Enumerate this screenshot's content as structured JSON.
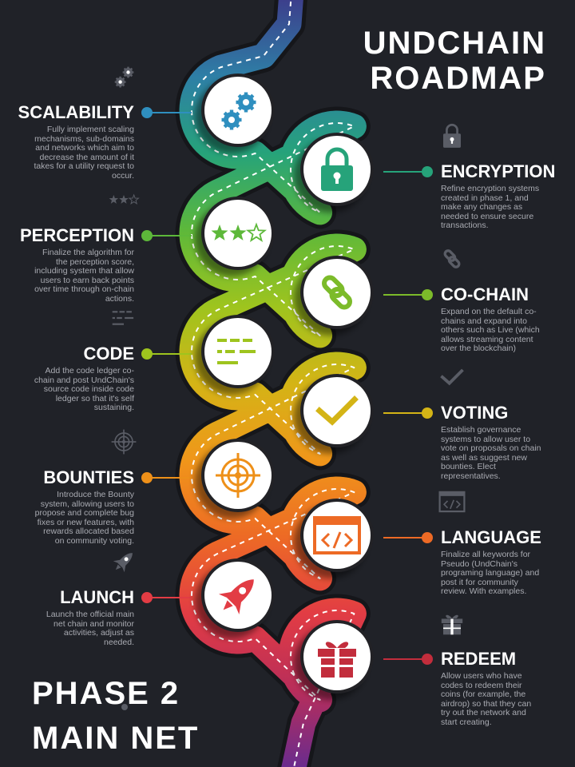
{
  "title": {
    "line1": "UNDCHAIN",
    "line2": "ROADMAP"
  },
  "phase": {
    "line1": "PHASE 2",
    "line2": "MAIN NET"
  },
  "colors": {
    "background": "#202228",
    "road_gradient": [
      "#3c3f8c",
      "#2e7fa6",
      "#26a37a",
      "#5db83a",
      "#9ec41e",
      "#d4b416",
      "#f0961a",
      "#ed6a25",
      "#e23c44",
      "#b82d5a",
      "#6a2c8e"
    ],
    "ghost_icon": "#5a5d66"
  },
  "milestones": [
    {
      "id": "scalability",
      "side": "left",
      "heading": "SCALABILITY",
      "color": "#2f8fbf",
      "icon": "gears-icon",
      "lines": [
        "Fully implement scaling",
        "mechanisms, sub-domains",
        "and networks which aim to",
        "decrease the amount of it",
        "takes for a utility request to",
        "occur."
      ]
    },
    {
      "id": "encryption",
      "side": "right",
      "heading": "ENCRYPTION",
      "color": "#26a37a",
      "icon": "padlock-icon",
      "lines": [
        "Refine encryption systems",
        "created in phase 1, and",
        "make any changes as",
        "needed to ensure secure",
        "transactions."
      ]
    },
    {
      "id": "perception",
      "side": "left",
      "heading": "PERCEPTION",
      "color": "#5db83a",
      "icon": "stars-icon",
      "lines": [
        "Finalize the algorithm for",
        "the perception score,",
        "including system that allow",
        "users to earn back points",
        "over time through on-chain",
        "actions."
      ]
    },
    {
      "id": "co-chain",
      "side": "right",
      "heading": "CO-CHAIN",
      "color": "#7cbb2a",
      "icon": "chain-link-icon",
      "lines": [
        "Expand on the default co-",
        "chains and expand into",
        "others such as Live (which",
        "allows streaming content",
        "over the blockchain)"
      ]
    },
    {
      "id": "code",
      "side": "left",
      "heading": "CODE",
      "color": "#9ec41e",
      "icon": "code-lines-icon",
      "lines": [
        "Add the code ledger co-",
        "chain and post UndChain's",
        "source code inside code",
        "ledger so that it's self",
        "sustaining."
      ]
    },
    {
      "id": "voting",
      "side": "right",
      "heading": "VOTING",
      "color": "#d4b416",
      "icon": "checkmark-icon",
      "lines": [
        "Establish governance",
        "systems to allow user to",
        "vote on proposals on chain",
        "as well as suggest new",
        "bounties. Elect",
        "representatives."
      ]
    },
    {
      "id": "bounties",
      "side": "left",
      "heading": "BOUNTIES",
      "color": "#ee9019",
      "icon": "target-icon",
      "lines": [
        "Introduce the Bounty",
        "system, allowing users to",
        "propose and complete bug",
        "fixes or new features, with",
        "rewards allocated based",
        "on community voting."
      ]
    },
    {
      "id": "language",
      "side": "right",
      "heading": "LANGUAGE",
      "color": "#ed6a25",
      "icon": "code-window-icon",
      "lines": [
        "Finalize all keywords for",
        "Pseudo (UndChain's",
        "programing language) and",
        "post it for community",
        "review. With examples."
      ]
    },
    {
      "id": "launch",
      "side": "left",
      "heading": "LAUNCH",
      "color": "#e23c44",
      "icon": "rocket-icon",
      "lines": [
        "Launch the official main",
        "net  chain and monitor",
        "activities, adjust as",
        "needed."
      ]
    },
    {
      "id": "redeem",
      "side": "right",
      "heading": "REDEEM",
      "color": "#c22d3c",
      "icon": "gift-icon",
      "lines": [
        "Allow users who have",
        "codes to redeem their",
        "coins (for example, the",
        "airdrop) so that they can",
        "try out the network and",
        "start creating."
      ]
    }
  ]
}
